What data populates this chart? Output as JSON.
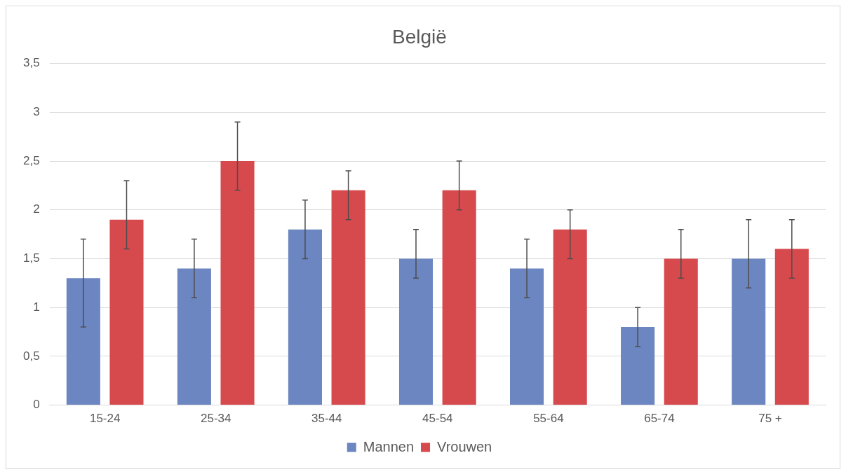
{
  "chart_data": {
    "type": "bar",
    "title": "België",
    "categories": [
      "15-24",
      "25-34",
      "35-44",
      "45-54",
      "55-64",
      "65-74",
      "75 +"
    ],
    "series": [
      {
        "name": "Mannen",
        "color": "#6b86c0",
        "values": [
          1.3,
          1.4,
          1.8,
          1.5,
          1.4,
          0.8,
          1.5
        ],
        "errors": [
          [
            0.8,
            1.7
          ],
          [
            1.1,
            1.7
          ],
          [
            1.5,
            2.1
          ],
          [
            1.3,
            1.8
          ],
          [
            1.1,
            1.7
          ],
          [
            0.6,
            1.0
          ],
          [
            1.2,
            1.9
          ]
        ]
      },
      {
        "name": "Vrouwen",
        "color": "#d64a4d",
        "values": [
          1.9,
          2.5,
          2.2,
          2.2,
          1.8,
          1.5,
          1.6
        ],
        "errors": [
          [
            1.6,
            2.3
          ],
          [
            2.2,
            2.9
          ],
          [
            1.9,
            2.4
          ],
          [
            2.0,
            2.5
          ],
          [
            1.5,
            2.0
          ],
          [
            1.3,
            1.8
          ],
          [
            1.3,
            1.9
          ]
        ]
      }
    ],
    "ylim": [
      0,
      3.5
    ],
    "yticks": [
      0,
      {
        "value": 0.5,
        "label": "0,5"
      },
      1,
      {
        "value": 1.5,
        "label": "1,5"
      },
      2,
      {
        "value": 2.5,
        "label": "2,5"
      },
      3,
      {
        "value": 3.5,
        "label": "3,5"
      }
    ],
    "grid": "y",
    "legend": "bottom"
  }
}
